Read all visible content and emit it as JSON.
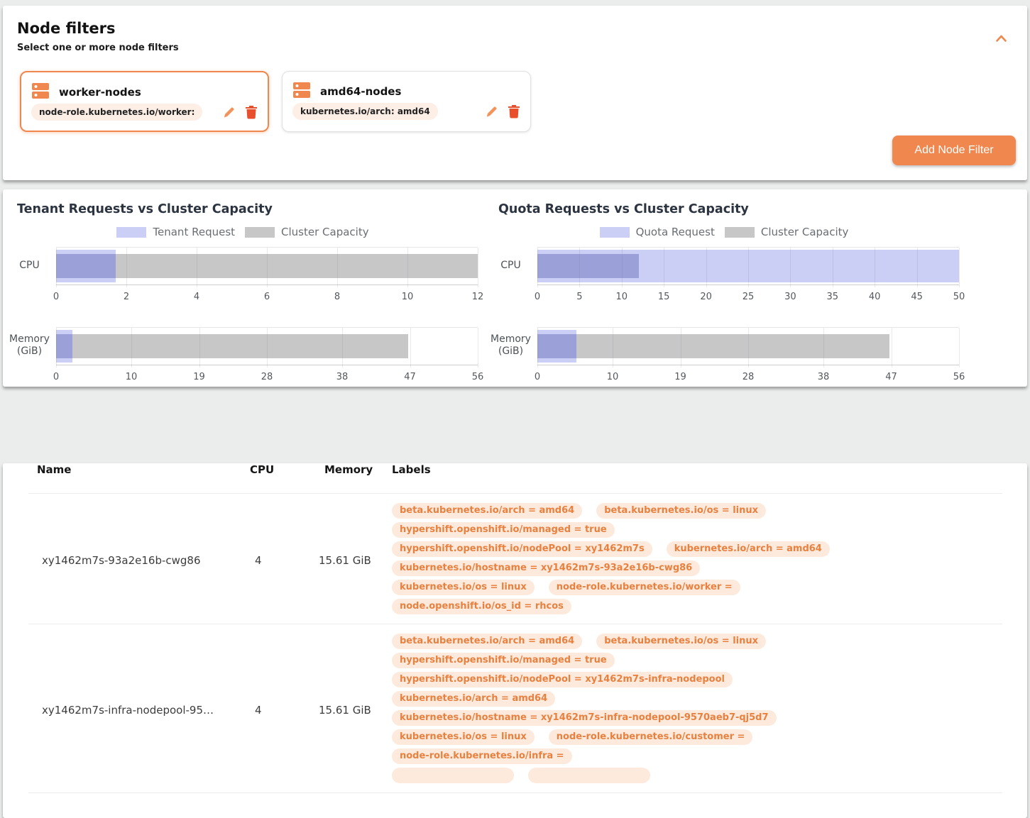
{
  "colors": {
    "accent_orange": "#f0874e",
    "delete_red": "#e84f2d",
    "chip_bg": "#fdeadd",
    "chip_text": "#e8813f",
    "request_purple": "#cbcef5",
    "overlap_purple": "#9ba0d9",
    "capacity_gray": "#c7c7c7"
  },
  "node_filters": {
    "title": "Node filters",
    "subtitle": "Select one or more node filters",
    "collapse_icon": "chevron-up-icon",
    "add_button_label": "Add Node Filter",
    "filters": [
      {
        "name": "worker-nodes",
        "label": "node-role.kubernetes.io/worker:",
        "selected": true,
        "icon": "node-group-icon",
        "actions": [
          "edit",
          "delete"
        ]
      },
      {
        "name": "amd64-nodes",
        "label": "kubernetes.io/arch: amd64",
        "selected": false,
        "icon": "node-group-icon",
        "actions": [
          "edit",
          "delete"
        ]
      }
    ]
  },
  "chart_data": [
    {
      "type": "bar",
      "orientation": "horizontal",
      "title": "Tenant Requests vs Cluster Capacity",
      "legend": [
        {
          "label": "Tenant Request",
          "color": "#cbcef5"
        },
        {
          "label": "Cluster Capacity",
          "color": "#c7c7c7"
        }
      ],
      "rows": [
        {
          "category": "CPU",
          "category_lines": [
            "CPU"
          ],
          "request": 1.7,
          "capacity": 12,
          "max": 12,
          "ticks": [
            0,
            2,
            4,
            6,
            8,
            10,
            12
          ]
        },
        {
          "category": "Memory (GiB)",
          "category_lines": [
            "Memory",
            "(GiB)"
          ],
          "request": 2.2,
          "capacity": 46.8,
          "max": 56,
          "ticks": [
            0,
            10,
            19,
            28,
            38,
            47,
            56
          ]
        }
      ]
    },
    {
      "type": "bar",
      "orientation": "horizontal",
      "title": "Quota Requests vs Cluster Capacity",
      "legend": [
        {
          "label": "Quota Request",
          "color": "#cbcef5"
        },
        {
          "label": "Cluster Capacity",
          "color": "#c7c7c7"
        }
      ],
      "rows": [
        {
          "category": "CPU",
          "category_lines": [
            "CPU"
          ],
          "request": 50,
          "capacity": 12,
          "max": 50,
          "ticks": [
            0,
            5,
            10,
            15,
            20,
            25,
            30,
            35,
            40,
            45,
            50
          ]
        },
        {
          "category": "Memory (GiB)",
          "category_lines": [
            "Memory",
            "(GiB)"
          ],
          "request": 5.2,
          "capacity": 46.8,
          "max": 56,
          "ticks": [
            0,
            10,
            19,
            28,
            38,
            47,
            56
          ]
        }
      ]
    }
  ],
  "table": {
    "columns": [
      "Name",
      "CPU",
      "Memory",
      "Labels"
    ],
    "rows": [
      {
        "name": "xy1462m7s-93a2e16b-cwg86",
        "cpu": "4",
        "memory": "15.61 GiB",
        "labels": [
          "beta.kubernetes.io/arch = amd64",
          "beta.kubernetes.io/os = linux",
          "hypershift.openshift.io/managed = true",
          "hypershift.openshift.io/nodePool = xy1462m7s",
          "kubernetes.io/arch = amd64",
          "kubernetes.io/hostname = xy1462m7s-93a2e16b-cwg86",
          "kubernetes.io/os = linux",
          "node-role.kubernetes.io/worker =",
          "node.openshift.io/os_id = rhcos"
        ]
      },
      {
        "name": "xy1462m7s-infra-nodepool-95…",
        "cpu": "4",
        "memory": "15.61 GiB",
        "labels": [
          "beta.kubernetes.io/arch = amd64",
          "beta.kubernetes.io/os = linux",
          "hypershift.openshift.io/managed = true",
          "hypershift.openshift.io/nodePool = xy1462m7s-infra-nodepool",
          "kubernetes.io/arch = amd64",
          "kubernetes.io/hostname = xy1462m7s-infra-nodepool-9570aeb7-qj5d7",
          "kubernetes.io/os = linux",
          "node-role.kubernetes.io/customer =",
          "node-role.kubernetes.io/infra =",
          "",
          ""
        ]
      }
    ]
  }
}
